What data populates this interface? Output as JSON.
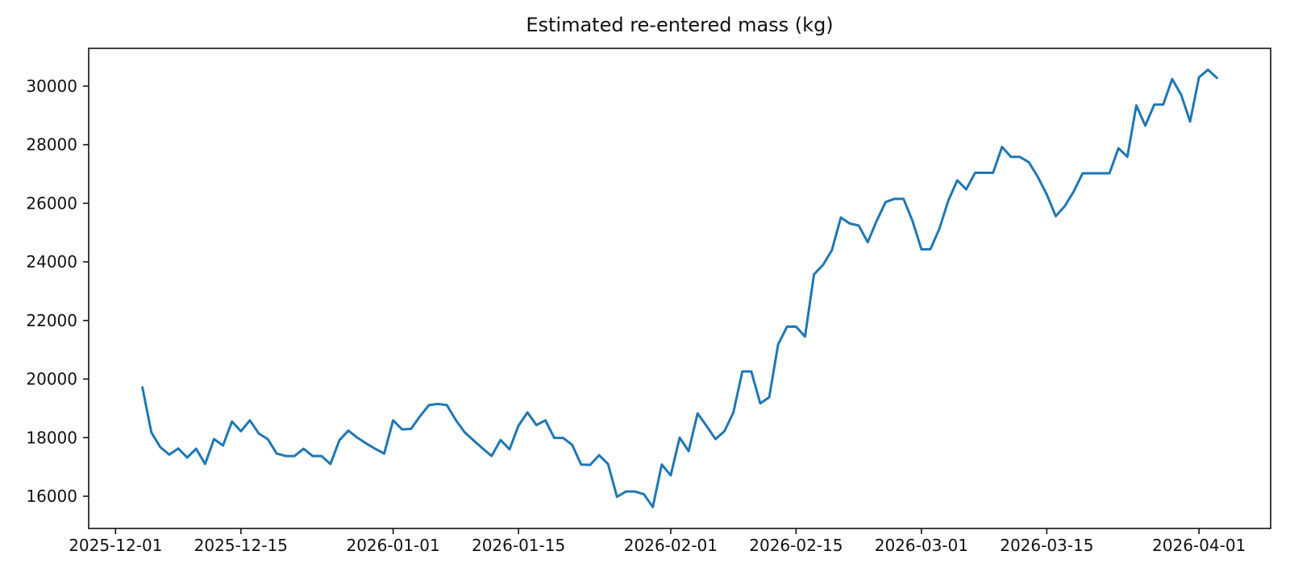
{
  "figure": {
    "background_color": "#ffffff"
  },
  "chart_data": {
    "type": "line",
    "title": "Estimated re-entered mass (kg)",
    "series_name": "estimated-re-entered-mass",
    "line_color": "#1f77b4",
    "grid": false,
    "legend_position": "none",
    "xlabel": "",
    "ylabel": "",
    "xlim": [
      "2025-11-28",
      "2026-04-09"
    ],
    "ylim": [
      14900,
      31290
    ],
    "x_ticks": [
      "2025-12-01",
      "2025-12-15",
      "2026-01-01",
      "2026-01-15",
      "2026-02-01",
      "2026-02-15",
      "2026-03-01",
      "2026-03-15",
      "2026-04-01"
    ],
    "y_ticks": [
      16000,
      18000,
      20000,
      22000,
      24000,
      26000,
      28000,
      30000
    ],
    "x": [
      "2025-12-04",
      "2025-12-05",
      "2025-12-06",
      "2025-12-07",
      "2025-12-08",
      "2025-12-09",
      "2025-12-10",
      "2025-12-11",
      "2025-12-12",
      "2025-12-13",
      "2025-12-14",
      "2025-12-15",
      "2025-12-16",
      "2025-12-17",
      "2025-12-18",
      "2025-12-19",
      "2025-12-20",
      "2025-12-21",
      "2025-12-22",
      "2025-12-23",
      "2025-12-24",
      "2025-12-25",
      "2025-12-26",
      "2025-12-27",
      "2025-12-28",
      "2025-12-29",
      "2025-12-30",
      "2025-12-31",
      "2026-01-01",
      "2026-01-02",
      "2026-01-03",
      "2026-01-04",
      "2026-01-05",
      "2026-01-06",
      "2026-01-07",
      "2026-01-08",
      "2026-01-09",
      "2026-01-10",
      "2026-01-11",
      "2026-01-12",
      "2026-01-13",
      "2026-01-14",
      "2026-01-15",
      "2026-01-16",
      "2026-01-17",
      "2026-01-18",
      "2026-01-19",
      "2026-01-20",
      "2026-01-21",
      "2026-01-22",
      "2026-01-23",
      "2026-01-24",
      "2026-01-25",
      "2026-01-26",
      "2026-01-27",
      "2026-01-28",
      "2026-01-29",
      "2026-01-30",
      "2026-01-31",
      "2026-02-01",
      "2026-02-02",
      "2026-02-03",
      "2026-02-04",
      "2026-02-05",
      "2026-02-06",
      "2026-02-07",
      "2026-02-08",
      "2026-02-09",
      "2026-02-10",
      "2026-02-11",
      "2026-02-12",
      "2026-02-13",
      "2026-02-14",
      "2026-02-15",
      "2026-02-16",
      "2026-02-17",
      "2026-02-18",
      "2026-02-19",
      "2026-02-20",
      "2026-02-21",
      "2026-02-22",
      "2026-02-23",
      "2026-02-24",
      "2026-02-25",
      "2026-02-26",
      "2026-02-27",
      "2026-02-28",
      "2026-03-01",
      "2026-03-02",
      "2026-03-03",
      "2026-03-04",
      "2026-03-05",
      "2026-03-06",
      "2026-03-07",
      "2026-03-08",
      "2026-03-09",
      "2026-03-10",
      "2026-03-11",
      "2026-03-12",
      "2026-03-13",
      "2026-03-14",
      "2026-03-15",
      "2026-03-16",
      "2026-03-17",
      "2026-03-18",
      "2026-03-19",
      "2026-03-20",
      "2026-03-21",
      "2026-03-22",
      "2026-03-23",
      "2026-03-24",
      "2026-03-25",
      "2026-03-26",
      "2026-03-27",
      "2026-03-28",
      "2026-03-29",
      "2026-03-30",
      "2026-03-31",
      "2026-04-01",
      "2026-04-02",
      "2026-04-03"
    ],
    "values": [
      19714,
      18177,
      17674,
      17420,
      17630,
      17320,
      17620,
      17100,
      17950,
      17730,
      18550,
      18220,
      18590,
      18140,
      17950,
      17455,
      17373,
      17373,
      17620,
      17373,
      17373,
      17100,
      17910,
      18240,
      18000,
      17800,
      17620,
      17455,
      18590,
      18280,
      18300,
      18730,
      19110,
      19150,
      19110,
      18600,
      18180,
      17900,
      17630,
      17373,
      17920,
      17600,
      18410,
      18860,
      18430,
      18590,
      17990,
      17990,
      17750,
      17080,
      17070,
      17400,
      17100,
      15980,
      16160,
      16160,
      16070,
      15630,
      17080,
      16714,
      18000,
      17540,
      18830,
      18400,
      17950,
      18220,
      18860,
      20260,
      20260,
      19170,
      19380,
      21190,
      21790,
      21790,
      21450,
      23573,
      23893,
      24400,
      25515,
      25310,
      25240,
      24672,
      25400,
      26042,
      26152,
      26152,
      25400,
      24430,
      24430,
      25129,
      26090,
      26785,
      26475,
      27042,
      27042,
      27042,
      27925,
      27583,
      27583,
      27400,
      26900,
      26300,
      25561,
      25900,
      26400,
      27024,
      27024,
      27024,
      27024,
      27880,
      27590,
      29340,
      28650,
      29370,
      29370,
      30240,
      29710,
      28790,
      30300,
      30560,
      30280
    ]
  }
}
